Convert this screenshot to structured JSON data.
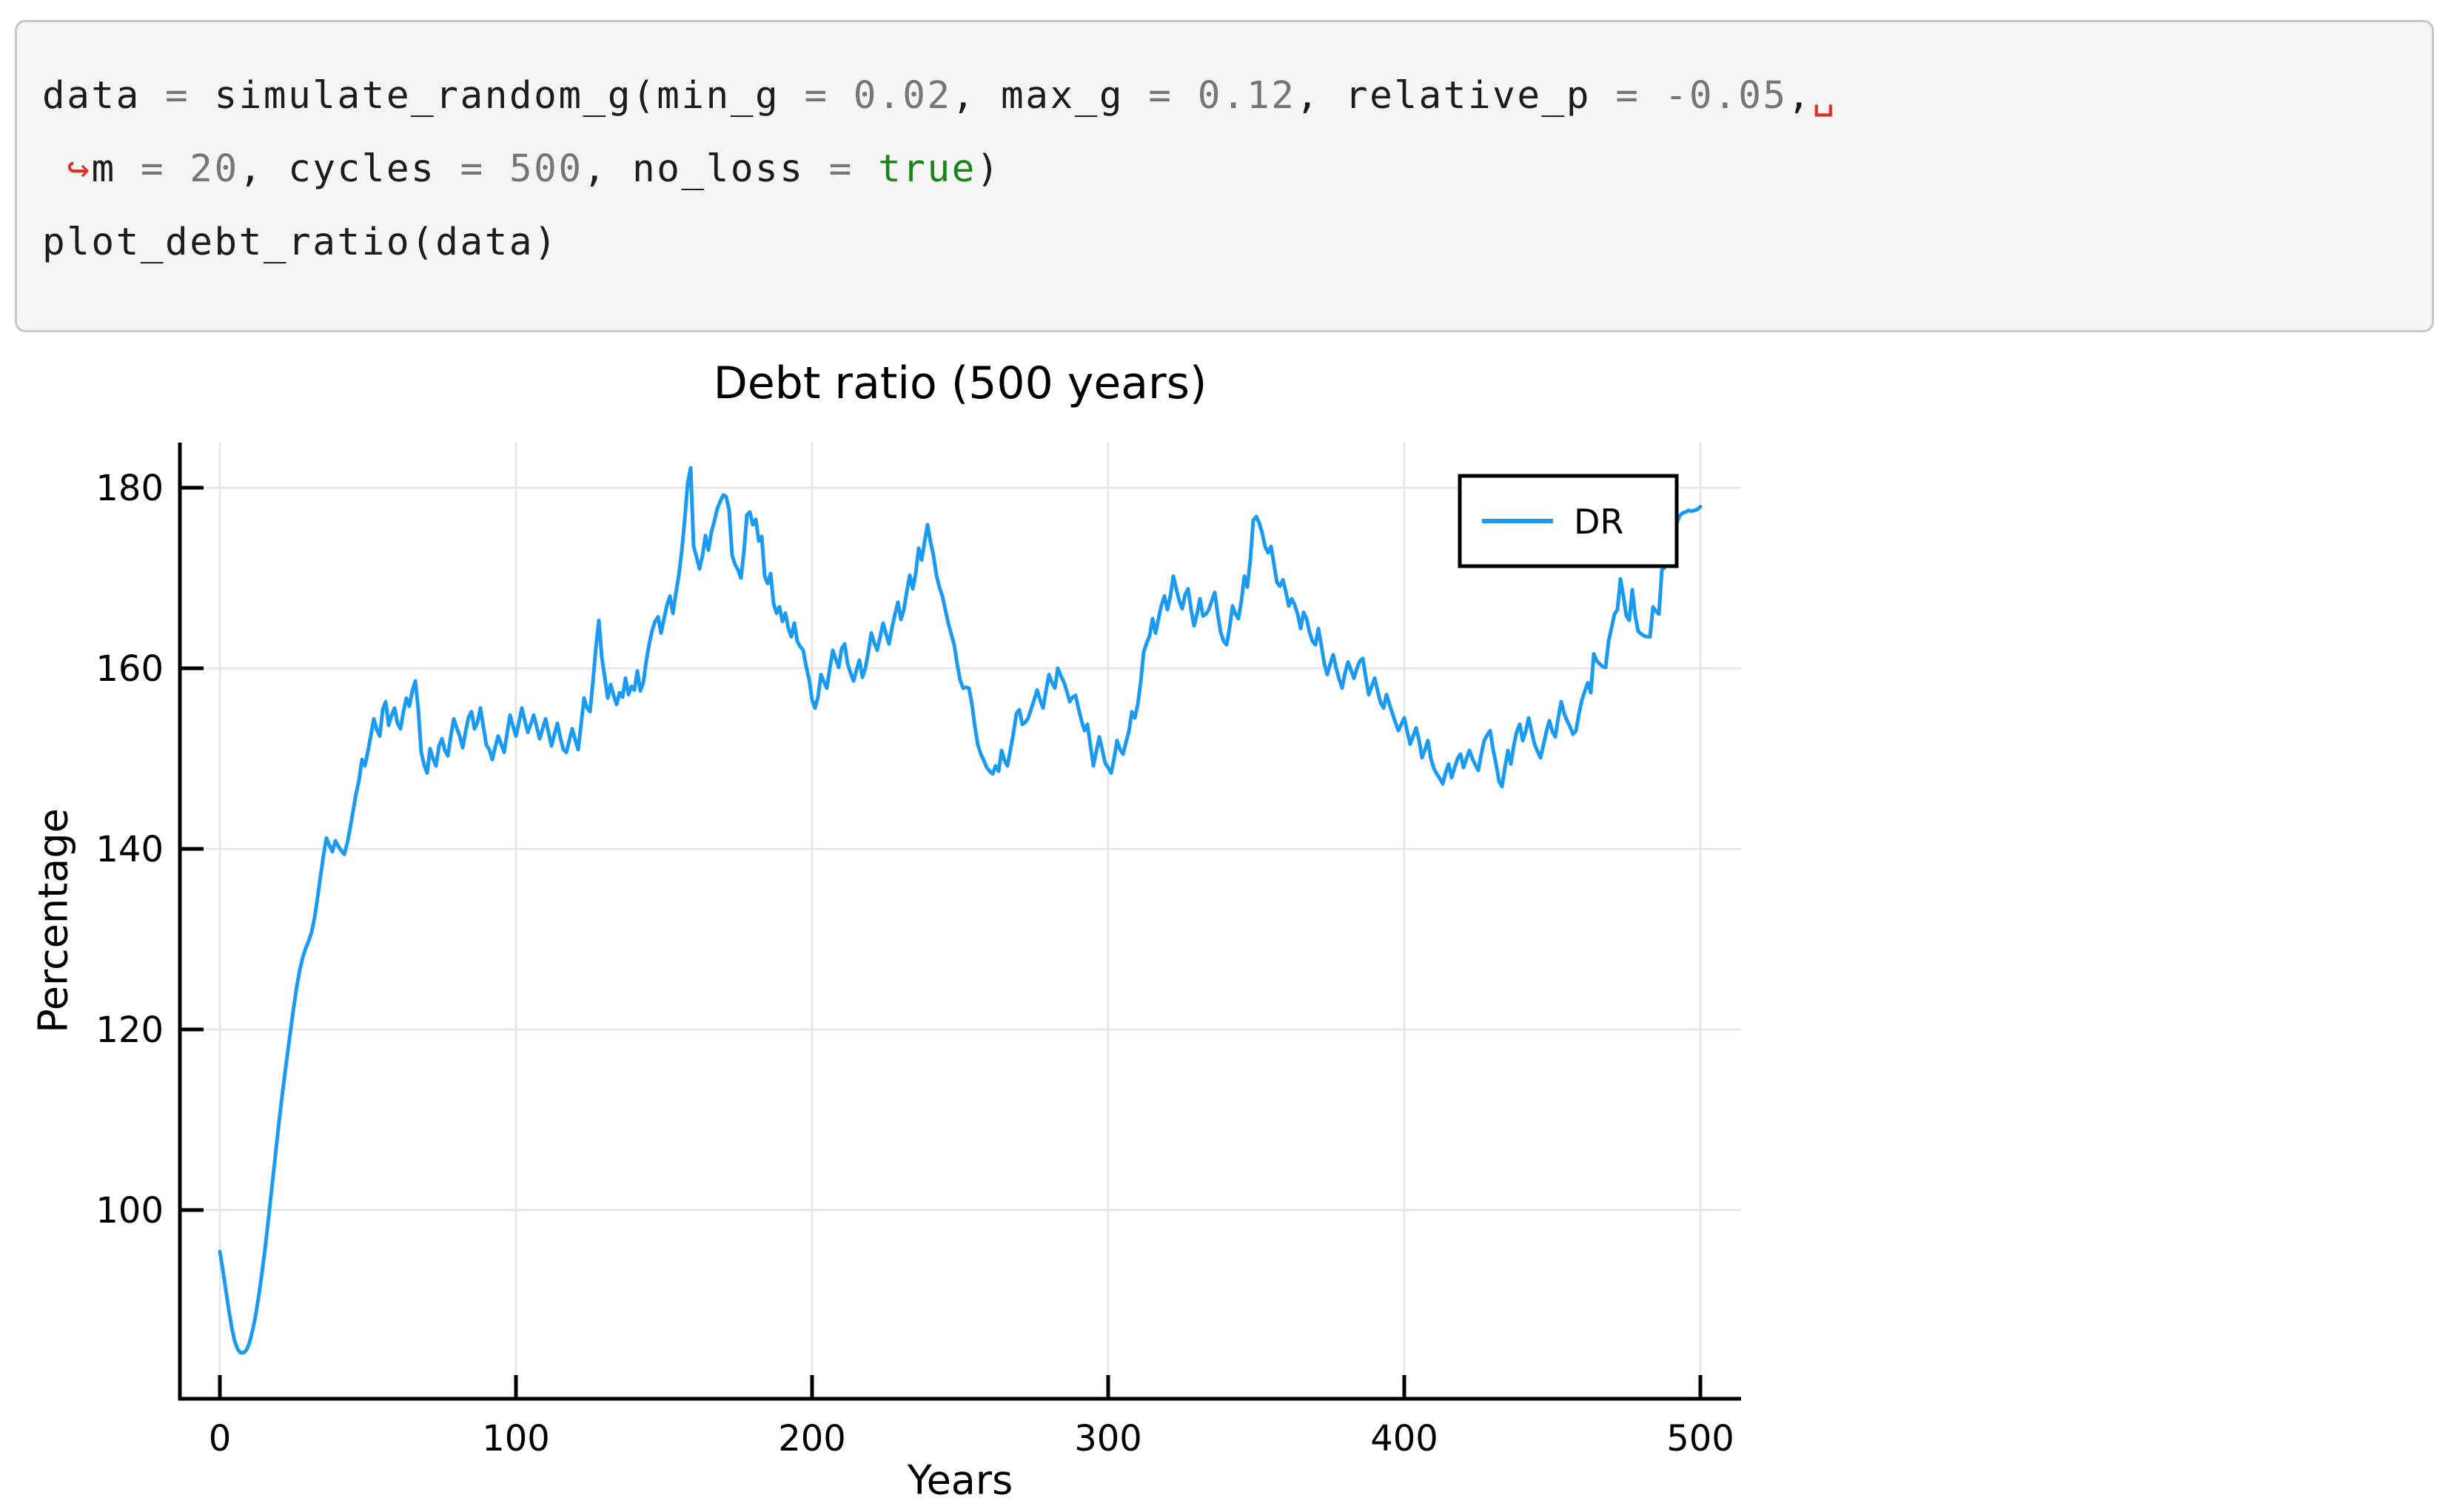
{
  "code_cell": {
    "palette": {
      "plain": "#1c1c1c",
      "gray": "#767676",
      "green": "#178717",
      "red": "#e0301e"
    },
    "lines": [
      {
        "tokens": [
          {
            "t": "data ",
            "c": "plain"
          },
          {
            "t": "= ",
            "c": "gray"
          },
          {
            "t": "simulate_random_g(min_g ",
            "c": "plain"
          },
          {
            "t": "= ",
            "c": "gray"
          },
          {
            "t": "0.02",
            "c": "gray"
          },
          {
            "t": ", max_g ",
            "c": "plain"
          },
          {
            "t": "= ",
            "c": "gray"
          },
          {
            "t": "0.12",
            "c": "gray"
          },
          {
            "t": ", relative_p ",
            "c": "plain"
          },
          {
            "t": "= ",
            "c": "gray"
          },
          {
            "t": "-0.05",
            "c": "gray"
          },
          {
            "t": ",",
            "c": "plain"
          },
          {
            "t": "␣",
            "c": "red"
          }
        ]
      },
      {
        "tokens": [
          {
            "t": " ",
            "c": "plain"
          },
          {
            "t": "↪",
            "c": "red"
          },
          {
            "t": "m ",
            "c": "plain"
          },
          {
            "t": "= ",
            "c": "gray"
          },
          {
            "t": "20",
            "c": "gray"
          },
          {
            "t": ", cycles ",
            "c": "plain"
          },
          {
            "t": "= ",
            "c": "gray"
          },
          {
            "t": "500",
            "c": "gray"
          },
          {
            "t": ", no_loss ",
            "c": "plain"
          },
          {
            "t": "= ",
            "c": "gray"
          },
          {
            "t": "true",
            "c": "green"
          },
          {
            "t": ")",
            "c": "plain"
          }
        ]
      },
      {
        "tokens": [
          {
            "t": "plot_debt_ratio(data)",
            "c": "plain"
          }
        ]
      }
    ]
  },
  "chart": {
    "title": "Debt ratio (500 years)",
    "xlabel": "Years",
    "ylabel": "Percentage",
    "legend_label": "DR",
    "series_color": "#1a9af0",
    "grid_color": "#e4e4e4",
    "axis_color": "#000000",
    "x_ticks": [
      0,
      100,
      200,
      300,
      400,
      500
    ],
    "y_ticks": [
      100,
      120,
      140,
      160,
      180
    ]
  },
  "chart_data": {
    "type": "line",
    "title": "Debt ratio (500 years)",
    "xlabel": "Years",
    "ylabel": "Percentage",
    "legend_position": "top-right",
    "grid": true,
    "xlim": [
      -12,
      509
    ],
    "ylim": [
      79,
      188.5
    ],
    "x_ticks": [
      0,
      100,
      200,
      300,
      400,
      500
    ],
    "y_ticks": [
      100,
      120,
      140,
      160,
      180
    ],
    "series": [
      {
        "name": "DR",
        "x_start": 0,
        "x_step": 1,
        "values": [
          95.4,
          93.4,
          91.2,
          89.0,
          87.0,
          85.5,
          84.6,
          84.2,
          84.2,
          84.5,
          85.3,
          86.6,
          88.2,
          90.2,
          92.5,
          95.0,
          97.8,
          100.8,
          103.8,
          106.8,
          109.8,
          112.6,
          115.2,
          117.7,
          120.2,
          122.6,
          124.8,
          126.6,
          128.0,
          129.0,
          129.8,
          130.8,
          132.4,
          134.6,
          137.0,
          139.3,
          141.2,
          140.4,
          139.7,
          140.9,
          140.3,
          139.8,
          139.4,
          140.6,
          142.3,
          144.2,
          146.1,
          147.6,
          149.9,
          149.2,
          150.8,
          152.6,
          154.4,
          153.2,
          152.5,
          155.4,
          156.3,
          153.7,
          154.8,
          155.6,
          153.9,
          153.3,
          155.2,
          156.7,
          155.8,
          157.5,
          158.6,
          155.5,
          150.7,
          149.3,
          148.4,
          151.1,
          150.0,
          149.2,
          151.4,
          152.2,
          150.9,
          150.3,
          152.5,
          154.4,
          153.4,
          152.5,
          151.2,
          153.0,
          154.6,
          155.2,
          153.3,
          154.0,
          155.6,
          153.5,
          151.5,
          151.0,
          149.9,
          151.3,
          152.5,
          151.6,
          150.7,
          152.8,
          154.8,
          153.6,
          152.5,
          154.0,
          155.6,
          154.2,
          152.9,
          153.8,
          154.8,
          153.5,
          152.2,
          153.3,
          154.4,
          152.9,
          151.4,
          152.7,
          153.9,
          152.3,
          151.0,
          150.7,
          152.0,
          153.3,
          152.1,
          151.0,
          153.8,
          156.7,
          155.6,
          155.2,
          158.5,
          162.3,
          165.3,
          161.2,
          159.0,
          156.7,
          158.2,
          157.0,
          156.0,
          157.3,
          156.8,
          158.9,
          157.1,
          158.0,
          157.6,
          159.7,
          157.5,
          158.4,
          160.8,
          162.7,
          164.2,
          165.2,
          165.7,
          163.9,
          165.5,
          167.0,
          168.0,
          166.1,
          168.3,
          170.3,
          173.0,
          176.5,
          180.5,
          182.2,
          173.5,
          172.3,
          171.0,
          172.5,
          174.7,
          173.1,
          175.1,
          176.3,
          177.7,
          178.5,
          179.2,
          179.0,
          177.5,
          172.5,
          171.5,
          170.9,
          170.0,
          173.0,
          177.0,
          177.3,
          175.9,
          176.5,
          174.1,
          174.6,
          170.2,
          169.4,
          170.5,
          167.2,
          166.1,
          166.8,
          165.2,
          166.1,
          164.4,
          163.5,
          165.0,
          163.0,
          162.4,
          162.0,
          160.2,
          158.8,
          156.5,
          155.6,
          156.8,
          159.3,
          158.5,
          157.8,
          160.0,
          162.0,
          161.0,
          160.1,
          162.2,
          162.7,
          160.5,
          159.5,
          158.6,
          159.8,
          160.9,
          159.0,
          160.0,
          161.8,
          163.9,
          162.8,
          162.0,
          163.5,
          165.0,
          163.8,
          162.7,
          164.5,
          166.0,
          167.3,
          165.4,
          166.5,
          168.5,
          170.3,
          168.8,
          170.5,
          173.3,
          172.0,
          174.0,
          175.9,
          174.0,
          172.5,
          170.3,
          169.0,
          168.0,
          166.5,
          165.0,
          163.8,
          162.6,
          160.5,
          158.7,
          157.8,
          157.9,
          157.8,
          156.0,
          153.5,
          151.5,
          150.5,
          149.8,
          149.0,
          148.6,
          148.3,
          149.2,
          148.6,
          150.9,
          149.8,
          149.2,
          151.0,
          152.8,
          155.0,
          155.4,
          153.8,
          154.0,
          154.5,
          155.5,
          156.5,
          157.6,
          156.5,
          155.6,
          157.5,
          159.3,
          158.4,
          157.8,
          160.0,
          159.2,
          158.5,
          157.5,
          156.3,
          156.8,
          157.0,
          155.5,
          154.2,
          153.1,
          153.8,
          151.5,
          149.2,
          150.8,
          152.4,
          151.0,
          149.5,
          149.0,
          148.4,
          150.0,
          152.0,
          151.0,
          150.5,
          151.8,
          153.0,
          155.2,
          154.5,
          156.0,
          158.5,
          161.8,
          162.8,
          163.6,
          165.5,
          163.9,
          165.5,
          167.0,
          168.0,
          166.5,
          168.0,
          170.2,
          168.8,
          167.5,
          166.6,
          168.2,
          168.8,
          166.5,
          164.7,
          166.0,
          167.7,
          165.8,
          166.0,
          166.5,
          167.5,
          168.4,
          166.0,
          164.0,
          163.0,
          162.6,
          164.5,
          166.9,
          166.0,
          165.5,
          167.5,
          170.2,
          169.0,
          172.0,
          176.4,
          176.8,
          176.1,
          175.0,
          173.5,
          172.8,
          173.5,
          171.5,
          169.5,
          169.1,
          169.8,
          168.5,
          166.9,
          167.7,
          167.0,
          166.0,
          164.4,
          166.2,
          165.5,
          164.0,
          163.0,
          162.6,
          164.4,
          162.5,
          160.5,
          159.3,
          160.5,
          161.5,
          160.0,
          158.8,
          157.8,
          159.5,
          160.7,
          159.8,
          158.9,
          160.0,
          160.8,
          161.1,
          159.0,
          157.1,
          158.0,
          158.9,
          157.5,
          156.2,
          155.6,
          157.1,
          156.0,
          155.0,
          154.0,
          153.1,
          153.8,
          154.5,
          153.0,
          151.6,
          152.5,
          153.4,
          152.0,
          150.1,
          151.0,
          152.0,
          150.0,
          148.9,
          148.3,
          147.8,
          147.2,
          148.5,
          149.4,
          147.9,
          149.0,
          150.0,
          150.5,
          149.0,
          150.0,
          150.9,
          150.0,
          149.3,
          148.7,
          150.5,
          152.0,
          152.6,
          153.1,
          151.0,
          149.4,
          147.5,
          146.9,
          149.0,
          150.9,
          149.4,
          151.5,
          153.0,
          153.8,
          152.0,
          153.0,
          154.5,
          153.0,
          151.6,
          150.8,
          150.1,
          151.5,
          153.0,
          154.2,
          153.0,
          152.4,
          154.5,
          156.3,
          155.0,
          154.2,
          153.5,
          152.7,
          153.1,
          155.0,
          156.5,
          157.5,
          158.4,
          157.3,
          161.6,
          160.8,
          160.5,
          160.2,
          160.1,
          163.0,
          164.5,
          166.0,
          166.5,
          169.9,
          168.0,
          165.8,
          165.3,
          168.7,
          165.8,
          164.1,
          163.8,
          163.6,
          163.5,
          163.5,
          166.8,
          166.3,
          166.0,
          170.9,
          171.2,
          174.2,
          174.7,
          174.3,
          176.1,
          176.9,
          177.2,
          177.3,
          177.5,
          177.4,
          177.5,
          177.6,
          177.9
        ]
      }
    ]
  }
}
